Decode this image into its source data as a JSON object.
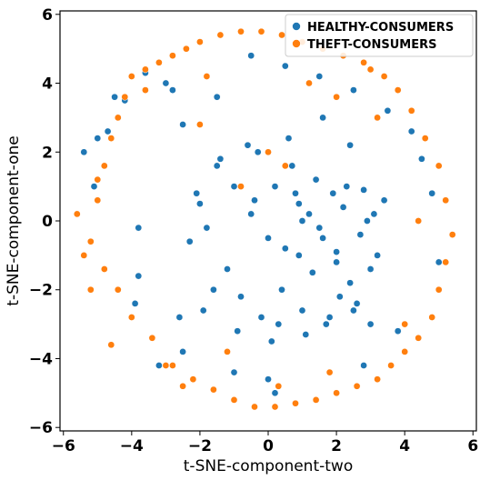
{
  "chart_data": {
    "type": "scatter",
    "title": "",
    "xlabel": "t-SNE-component-two",
    "ylabel": "t-SNE-component-one",
    "xlim": [
      -6.1,
      6.1
    ],
    "ylim": [
      -6.1,
      6.1
    ],
    "xticks": [
      -6,
      -4,
      -2,
      0,
      2,
      4,
      6
    ],
    "yticks": [
      -6,
      -4,
      -2,
      0,
      2,
      4,
      6
    ],
    "xtick_labels": [
      "−6",
      "−4",
      "−2",
      "0",
      "2",
      "4",
      "6"
    ],
    "ytick_labels": [
      "−6",
      "−4",
      "−2",
      "0",
      "2",
      "4",
      "6"
    ],
    "grid": false,
    "legend_position": "top-right",
    "series": [
      {
        "name": "HEALTHY-CONSUMERS",
        "color": "#1f77b4",
        "x": [
          0.8,
          1.2,
          1.6,
          2.0,
          2.4,
          0.4,
          1.0,
          1.8,
          2.6,
          3.0,
          0.2,
          0.9,
          1.5,
          2.2,
          2.9,
          0.5,
          1.3,
          2.1,
          2.8,
          0.0,
          -0.5,
          -1.0,
          -1.5,
          -2.0,
          -2.3,
          -1.2,
          -0.8,
          -0.2,
          0.3,
          1.1,
          1.7,
          2.5,
          -1.8,
          -2.1,
          -1.4,
          -0.6,
          0.7,
          1.4,
          2.3,
          3.1,
          -0.3,
          0.6,
          1.9,
          2.7,
          -1.6,
          -0.9,
          0.1,
          1.0,
          2.0,
          3.2,
          -3.8,
          -3.8,
          -3.9,
          -4.7,
          -4.5,
          -5.0,
          -5.4,
          -5.1,
          -4.2,
          -3.6,
          -3.0,
          -2.8,
          -2.5,
          -1.5,
          -0.5,
          0.5,
          1.5,
          2.5,
          3.5,
          4.2,
          4.5,
          4.8,
          5.0,
          3.8,
          2.8,
          0.0,
          -1.0,
          -2.5,
          -3.2,
          0.2,
          1.6,
          2.4,
          -2.6,
          -1.9,
          3.0,
          3.4,
          -0.4,
          0.9
        ],
        "y": [
          0.8,
          0.2,
          -0.5,
          -1.2,
          -1.8,
          -2.0,
          -2.6,
          -2.8,
          -2.4,
          -1.4,
          1.0,
          0.5,
          -0.2,
          0.4,
          0.0,
          -0.8,
          -1.5,
          -2.2,
          0.9,
          -0.5,
          0.2,
          1.0,
          1.6,
          0.5,
          -0.6,
          -1.4,
          -2.2,
          -2.8,
          -3.0,
          -3.3,
          -3.0,
          -2.6,
          -0.2,
          0.8,
          1.8,
          2.2,
          1.6,
          1.2,
          1.0,
          0.2,
          2.0,
          2.4,
          0.8,
          -0.4,
          -2.0,
          -3.2,
          -3.5,
          0.0,
          -0.9,
          -1.0,
          -0.2,
          -1.6,
          -2.4,
          2.6,
          3.6,
          2.4,
          2.0,
          1.0,
          3.5,
          4.3,
          4.0,
          3.8,
          2.8,
          3.6,
          4.8,
          4.5,
          4.2,
          3.8,
          3.2,
          2.6,
          1.8,
          0.8,
          -1.2,
          -3.2,
          -4.2,
          -4.6,
          -4.4,
          -3.8,
          -4.2,
          -5.0,
          3.0,
          2.2,
          -2.8,
          -2.6,
          -3.0,
          0.6,
          0.6,
          -1.0
        ]
      },
      {
        "name": "THEFT-CONSUMERS",
        "color": "#ff7f0e",
        "x": [
          -5.6,
          -5.4,
          -5.2,
          -5.0,
          -4.8,
          -4.6,
          -4.4,
          -4.2,
          -4.0,
          -3.6,
          -3.2,
          -2.8,
          -2.4,
          -2.0,
          -1.4,
          -0.8,
          -0.2,
          0.4,
          1.0,
          1.6,
          2.2,
          2.8,
          3.4,
          3.8,
          4.2,
          4.6,
          5.0,
          5.2,
          5.4,
          5.2,
          5.0,
          4.8,
          4.4,
          4.0,
          3.6,
          3.2,
          2.6,
          2.0,
          1.4,
          0.8,
          0.2,
          -0.4,
          -1.0,
          -1.6,
          -2.2,
          -2.8,
          -3.4,
          -4.0,
          -4.4,
          -4.8,
          -5.2,
          -5.0,
          -4.6,
          -3.0,
          -2.5,
          0.0,
          0.5,
          -0.8,
          1.2,
          3.0,
          4.0,
          -1.2,
          2.0,
          -2.0,
          4.4,
          -3.6,
          0.3,
          1.8,
          -1.8,
          3.2
        ],
        "y": [
          0.2,
          -1.0,
          -2.0,
          0.6,
          1.6,
          2.4,
          3.0,
          3.6,
          4.2,
          4.4,
          4.6,
          4.8,
          5.0,
          5.2,
          5.4,
          5.5,
          5.5,
          5.4,
          5.2,
          5.0,
          4.8,
          4.6,
          4.2,
          3.8,
          3.2,
          2.4,
          1.6,
          0.6,
          -0.4,
          -1.2,
          -2.0,
          -2.8,
          -3.4,
          -3.8,
          -4.2,
          -4.6,
          -4.8,
          -5.0,
          -5.2,
          -5.3,
          -5.4,
          -5.4,
          -5.2,
          -4.9,
          -4.6,
          -4.2,
          -3.4,
          -2.8,
          -2.0,
          -1.4,
          -0.6,
          1.2,
          -3.6,
          -4.2,
          -4.8,
          2.0,
          1.6,
          1.0,
          4.0,
          4.4,
          -3.0,
          -3.8,
          3.6,
          2.8,
          0.0,
          3.8,
          -4.8,
          -4.4,
          4.2,
          3.0
        ]
      }
    ]
  }
}
